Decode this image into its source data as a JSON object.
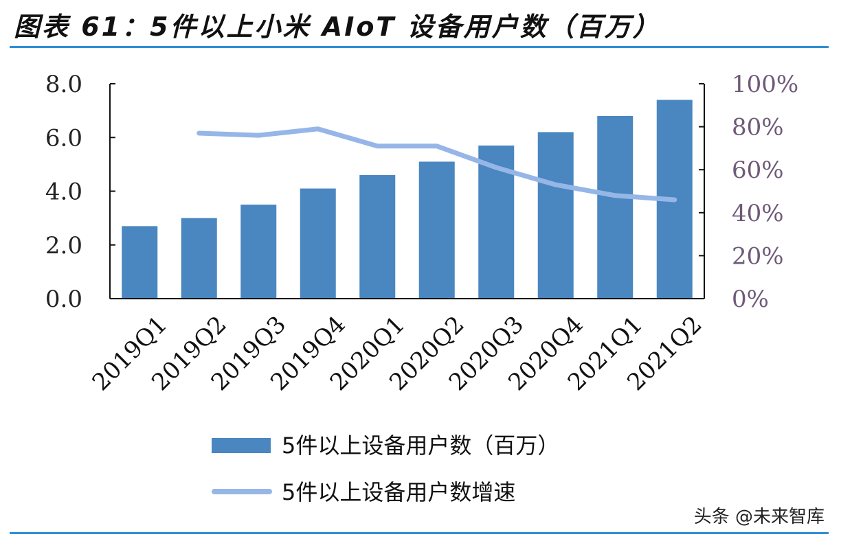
{
  "title": "图表 61：5件以上小米 AIoT 设备用户数（百万）",
  "watermark": "头条 @未来智库",
  "colors": {
    "bar": "#4a86c0",
    "line": "#96b6e8",
    "rule": "#2f8fd6",
    "right_axis_text": "#6e5a78"
  },
  "chart_data": {
    "type": "bar+line",
    "categories": [
      "2019Q1",
      "2019Q2",
      "2019Q3",
      "2019Q4",
      "2020Q1",
      "2020Q2",
      "2020Q3",
      "2020Q4",
      "2021Q1",
      "2021Q2"
    ],
    "series": [
      {
        "name": "5件以上设备用户数（百万）",
        "type": "bar",
        "axis": "left",
        "values": [
          2.7,
          3.0,
          3.5,
          4.1,
          4.6,
          5.1,
          5.7,
          6.2,
          6.8,
          7.4
        ]
      },
      {
        "name": "5件以上设备用户数增速",
        "type": "line",
        "axis": "right",
        "values": [
          null,
          77,
          76,
          79,
          71,
          71,
          61,
          53,
          48,
          46
        ]
      }
    ],
    "left_axis": {
      "range": [
        0,
        8
      ],
      "ticks": [
        "0.0",
        "2.0",
        "4.0",
        "6.0",
        "8.0"
      ]
    },
    "right_axis": {
      "range": [
        0,
        100
      ],
      "unit": "%",
      "ticks": [
        "0%",
        "20%",
        "40%",
        "60%",
        "80%",
        "100%"
      ]
    },
    "grid": false,
    "legend_placement": "bottom"
  }
}
